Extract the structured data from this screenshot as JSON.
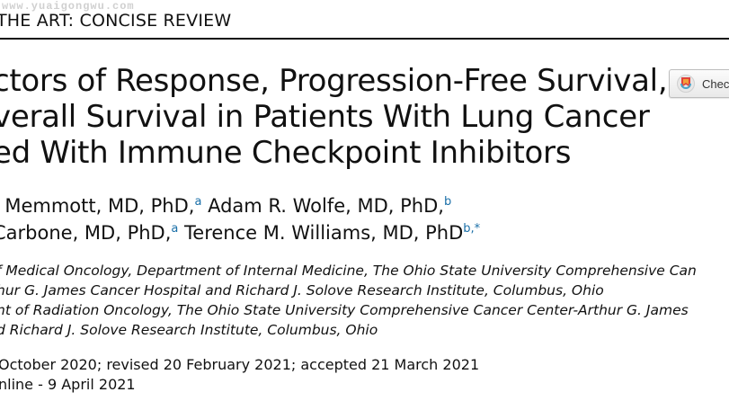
{
  "watermark": "www.yuaigongwu.com",
  "section_head": "THE ART: CONCISE REVIEW",
  "check_button": {
    "label": "Check",
    "icon": "crossmark-icon"
  },
  "title_lines": [
    "ctors of Response, Progression-Free Survival,",
    "verall Survival in Patients With Lung Cancer",
    "ed With Immune Checkpoint Inhibitors"
  ],
  "authors": {
    "line1": [
      {
        "name": ". Memmott, MD, PhD,",
        "sup": "a"
      },
      {
        "name": " Adam R. Wolfe, MD, PhD,",
        "sup": "b"
      }
    ],
    "line2": [
      {
        "name": " Carbone, MD, PhD,",
        "sup": "a"
      },
      {
        "name": " Terence M. Williams, MD, PhD",
        "sup": "b,*"
      }
    ]
  },
  "affiliations": [
    "f Medical Oncology, Department of Internal Medicine, The Ohio State University Comprehensive Can",
    "hur G. James Cancer Hospital and Richard J. Solove Research Institute, Columbus, Ohio",
    "nt of Radiation Oncology, The Ohio State University Comprehensive Cancer Center-Arthur G. James",
    "d Richard J. Solove Research Institute, Columbus, Ohio"
  ],
  "dates": [
    "October 2020; revised 20 February 2021; accepted 21 March 2021",
    "nline - 9 April 2021"
  ],
  "colors": {
    "sup_link": "#1a6fa8",
    "rule": "#111111"
  }
}
